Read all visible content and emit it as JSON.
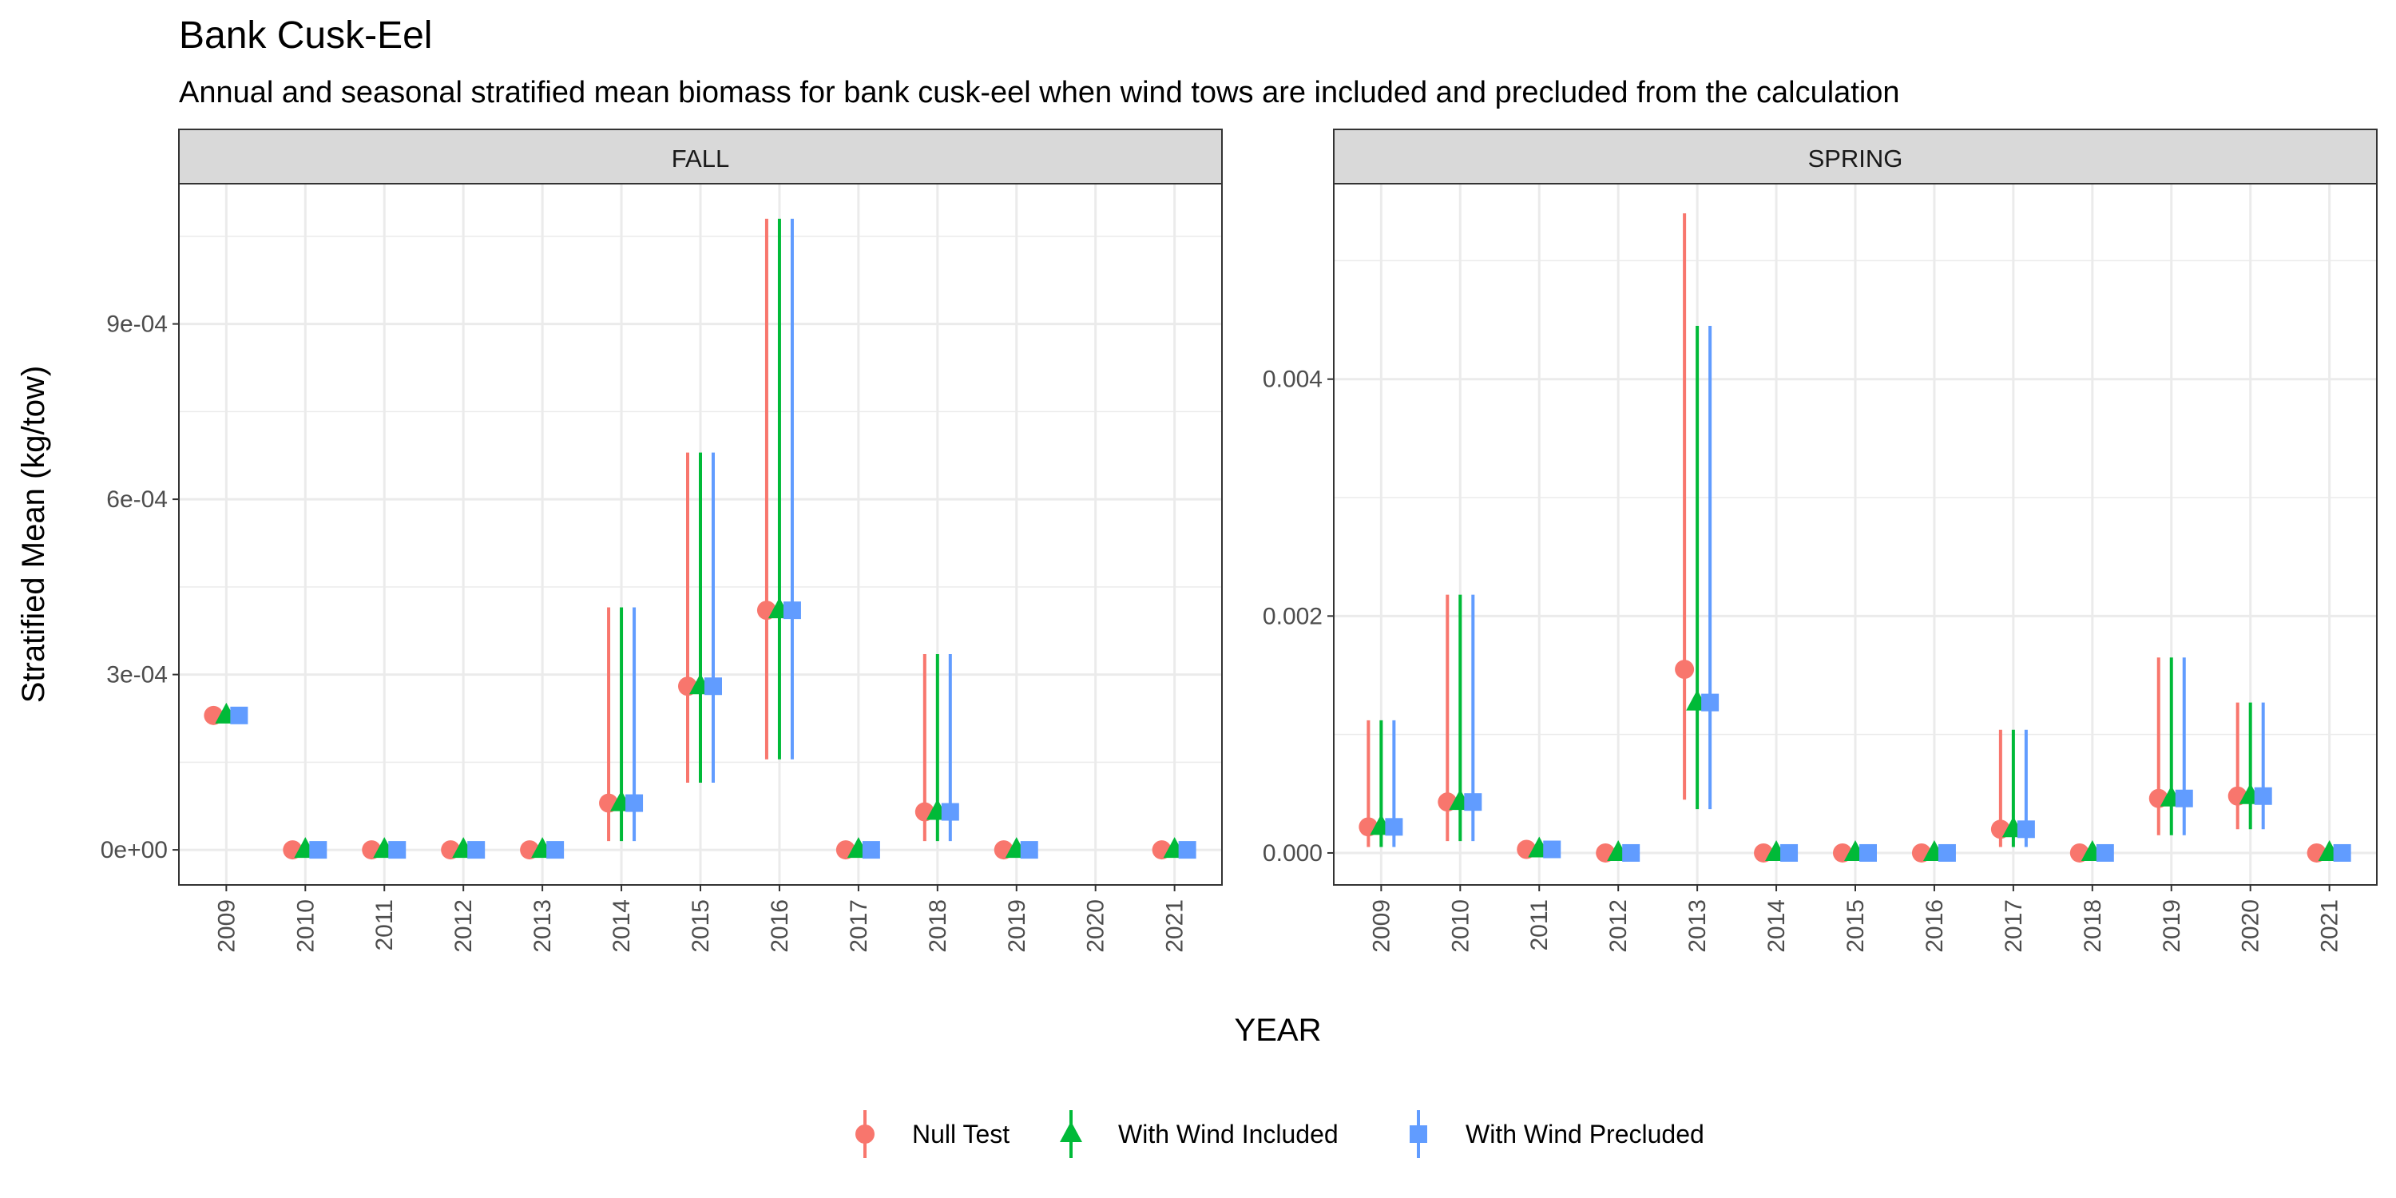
{
  "title": "Bank Cusk-Eel",
  "subtitle": "Annual and seasonal stratified mean biomass for bank cusk-eel when wind tows are included and precluded from the calculation",
  "xlabel": "YEAR",
  "ylabel": "Stratified Mean (kg/tow)",
  "legend": {
    "placement": "bottom",
    "items": [
      {
        "label": "Null Test",
        "color": "#F8766D",
        "shape": "circle"
      },
      {
        "label": "With Wind Included",
        "color": "#00BA38",
        "shape": "triangle"
      },
      {
        "label": "With Wind Precluded",
        "color": "#619CFF",
        "shape": "square"
      }
    ]
  },
  "chart_data": [
    {
      "type": "scatter",
      "panel": "FALL",
      "categories": [
        "2009",
        "2010",
        "2011",
        "2012",
        "2013",
        "2014",
        "2015",
        "2016",
        "2017",
        "2018",
        "2019",
        "2020",
        "2021"
      ],
      "ylim": [
        -6e-05,
        0.00114
      ],
      "yticks": [
        0,
        0.0003,
        0.0006,
        0.0009
      ],
      "ytick_labels": [
        "0e+00",
        "3e-04",
        "6e-04",
        "9e-04"
      ],
      "grid": true,
      "series": [
        {
          "name": "Null Test",
          "values": [
            0.00023,
            0,
            0,
            0,
            0,
            8e-05,
            0.00028,
            0.00041,
            0,
            6.5e-05,
            0,
            null,
            0
          ],
          "lower": [
            null,
            null,
            null,
            null,
            null,
            1.5e-05,
            0.000115,
            0.000155,
            null,
            1.5e-05,
            null,
            null,
            null
          ],
          "upper": [
            null,
            null,
            null,
            null,
            null,
            0.000415,
            0.00068,
            0.00108,
            null,
            0.000335,
            null,
            null,
            null
          ]
        },
        {
          "name": "With Wind Included",
          "values": [
            0.00023,
            0,
            0,
            0,
            0,
            8e-05,
            0.00028,
            0.00041,
            0,
            6.5e-05,
            0,
            null,
            0
          ],
          "lower": [
            null,
            null,
            null,
            null,
            null,
            1.5e-05,
            0.000115,
            0.000155,
            null,
            1.5e-05,
            null,
            null,
            null
          ],
          "upper": [
            null,
            null,
            null,
            null,
            null,
            0.000415,
            0.00068,
            0.00108,
            null,
            0.000335,
            null,
            null,
            null
          ]
        },
        {
          "name": "With Wind Precluded",
          "values": [
            0.00023,
            0,
            0,
            0,
            0,
            8e-05,
            0.00028,
            0.00041,
            0,
            6.5e-05,
            0,
            null,
            0
          ],
          "lower": [
            null,
            null,
            null,
            null,
            null,
            1.5e-05,
            0.000115,
            0.000155,
            null,
            1.5e-05,
            null,
            null,
            null
          ],
          "upper": [
            null,
            null,
            null,
            null,
            null,
            0.000415,
            0.00068,
            0.00108,
            null,
            0.000335,
            null,
            null,
            null
          ]
        }
      ]
    },
    {
      "type": "scatter",
      "panel": "SPRING",
      "categories": [
        "2009",
        "2010",
        "2011",
        "2012",
        "2013",
        "2014",
        "2015",
        "2016",
        "2017",
        "2018",
        "2019",
        "2020",
        "2021"
      ],
      "ylim": [
        -0.00027,
        0.00565
      ],
      "yticks": [
        0,
        0.002,
        0.004
      ],
      "ytick_labels": [
        "0.000",
        "0.002",
        "0.004"
      ],
      "grid": true,
      "series": [
        {
          "name": "Null Test",
          "values": [
            0.00022,
            0.00043,
            3e-05,
            0,
            0.00155,
            0,
            0,
            0,
            0.0002,
            0,
            0.00046,
            0.00048,
            0
          ],
          "lower": [
            5e-05,
            0.0001,
            null,
            null,
            0.00045,
            null,
            null,
            null,
            5e-05,
            null,
            0.00015,
            0.0002,
            null
          ],
          "upper": [
            0.00112,
            0.00218,
            null,
            null,
            0.0054,
            null,
            null,
            null,
            0.00104,
            null,
            0.00165,
            0.00127,
            null
          ]
        },
        {
          "name": "With Wind Included",
          "values": [
            0.00022,
            0.00043,
            3e-05,
            0,
            0.00127,
            0,
            0,
            0,
            0.0002,
            0,
            0.00046,
            0.00048,
            0
          ],
          "lower": [
            5e-05,
            0.0001,
            null,
            null,
            0.00037,
            null,
            null,
            null,
            5e-05,
            null,
            0.00015,
            0.0002,
            null
          ],
          "upper": [
            0.00112,
            0.00218,
            null,
            null,
            0.00445,
            null,
            null,
            null,
            0.00104,
            null,
            0.00165,
            0.00127,
            null
          ]
        },
        {
          "name": "With Wind Precluded",
          "values": [
            0.00022,
            0.00043,
            3e-05,
            0,
            0.00127,
            0,
            0,
            0,
            0.0002,
            0,
            0.00046,
            0.00048,
            0
          ],
          "lower": [
            5e-05,
            0.0001,
            null,
            null,
            0.00037,
            null,
            null,
            null,
            5e-05,
            null,
            0.00015,
            0.0002,
            null
          ],
          "upper": [
            0.00112,
            0.00218,
            null,
            null,
            0.00445,
            null,
            null,
            null,
            0.00104,
            null,
            0.00165,
            0.00127,
            null
          ]
        }
      ]
    }
  ]
}
